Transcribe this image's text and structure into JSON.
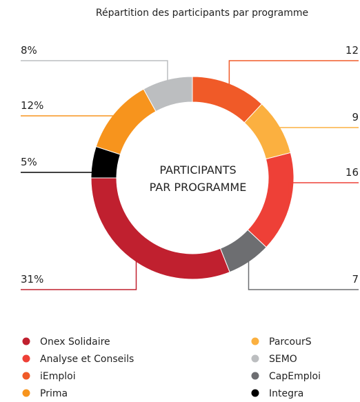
{
  "chart_data": {
    "type": "donut",
    "title": "Répartition des participants par programme",
    "center_label": [
      "PARTICIPANTS",
      "PAR PROGRAMME"
    ],
    "categories": [
      "iEmploi",
      "ParcourS",
      "Analyse et Conseils",
      "CapEmploi",
      "Onex Solidaire",
      "Integra",
      "Prima",
      "SEMO"
    ],
    "values": [
      12,
      9,
      16,
      7,
      31,
      5,
      12,
      8
    ],
    "value_labels": [
      "12",
      "9",
      "16",
      "7",
      "31%",
      "5%",
      "12%",
      "8%"
    ],
    "colors": [
      "#f05a28",
      "#fbb040",
      "#ee4037",
      "#6d6e71",
      "#c0202f",
      "#000000",
      "#f7941d",
      "#bcbec0"
    ]
  }
}
